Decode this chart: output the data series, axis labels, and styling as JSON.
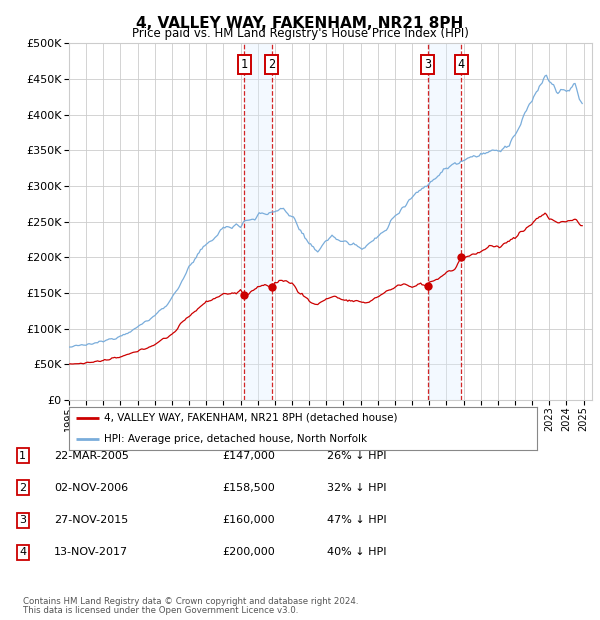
{
  "title": "4, VALLEY WAY, FAKENHAM, NR21 8PH",
  "subtitle": "Price paid vs. HM Land Registry's House Price Index (HPI)",
  "ylim": [
    0,
    500000
  ],
  "yticks": [
    0,
    50000,
    100000,
    150000,
    200000,
    250000,
    300000,
    350000,
    400000,
    450000,
    500000
  ],
  "transactions": [
    {
      "num": 1,
      "date_str": "22-MAR-2005",
      "price": 147000,
      "pct": "26% ↓ HPI",
      "date_x": 2005.22
    },
    {
      "num": 2,
      "date_str": "02-NOV-2006",
      "price": 158500,
      "pct": "32% ↓ HPI",
      "date_x": 2006.83
    },
    {
      "num": 3,
      "date_str": "27-NOV-2015",
      "price": 160000,
      "pct": "47% ↓ HPI",
      "date_x": 2015.9
    },
    {
      "num": 4,
      "date_str": "13-NOV-2017",
      "price": 200000,
      "pct": "40% ↓ HPI",
      "date_x": 2017.87
    }
  ],
  "legend_line1": "4, VALLEY WAY, FAKENHAM, NR21 8PH (detached house)",
  "legend_line2": "HPI: Average price, detached house, North Norfolk",
  "footer1": "Contains HM Land Registry data © Crown copyright and database right 2024.",
  "footer2": "This data is licensed under the Open Government Licence v3.0.",
  "hpi_color": "#7aaddb",
  "price_color": "#cc0000",
  "shade_color": "#ddeeff",
  "vline_color": "#cc0000",
  "background_color": "#ffffff",
  "grid_color": "#cccccc",
  "xlim_start": 1995.0,
  "xlim_end": 2025.5
}
